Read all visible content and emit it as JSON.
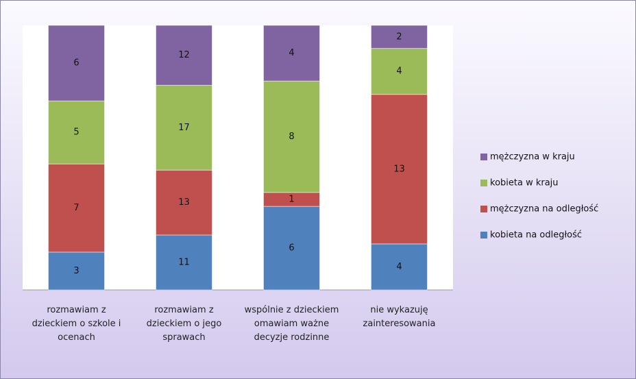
{
  "chart_data": {
    "type": "bar",
    "stacked": "percent",
    "categories": [
      "rozmawiam z dzieckiem o szkole i ocenach",
      "rozmawiam z dzieckiem o jego sprawach",
      "wspólnie z dzieckiem omawiam ważne decyzje rodzinne",
      "nie wykazuję zainteresowania"
    ],
    "series": [
      {
        "name": "kobieta na odległość",
        "color": "#4f81bd",
        "values": [
          3,
          11,
          6,
          4
        ]
      },
      {
        "name": "mężczyzna na odległość",
        "color": "#c0504d",
        "values": [
          7,
          13,
          1,
          13
        ]
      },
      {
        "name": "kobieta w kraju",
        "color": "#9bbb59",
        "values": [
          5,
          17,
          8,
          4
        ]
      },
      {
        "name": "mężczyzna w kraju",
        "color": "#8064a2",
        "values": [
          6,
          12,
          4,
          2
        ]
      }
    ],
    "legend": "right"
  }
}
